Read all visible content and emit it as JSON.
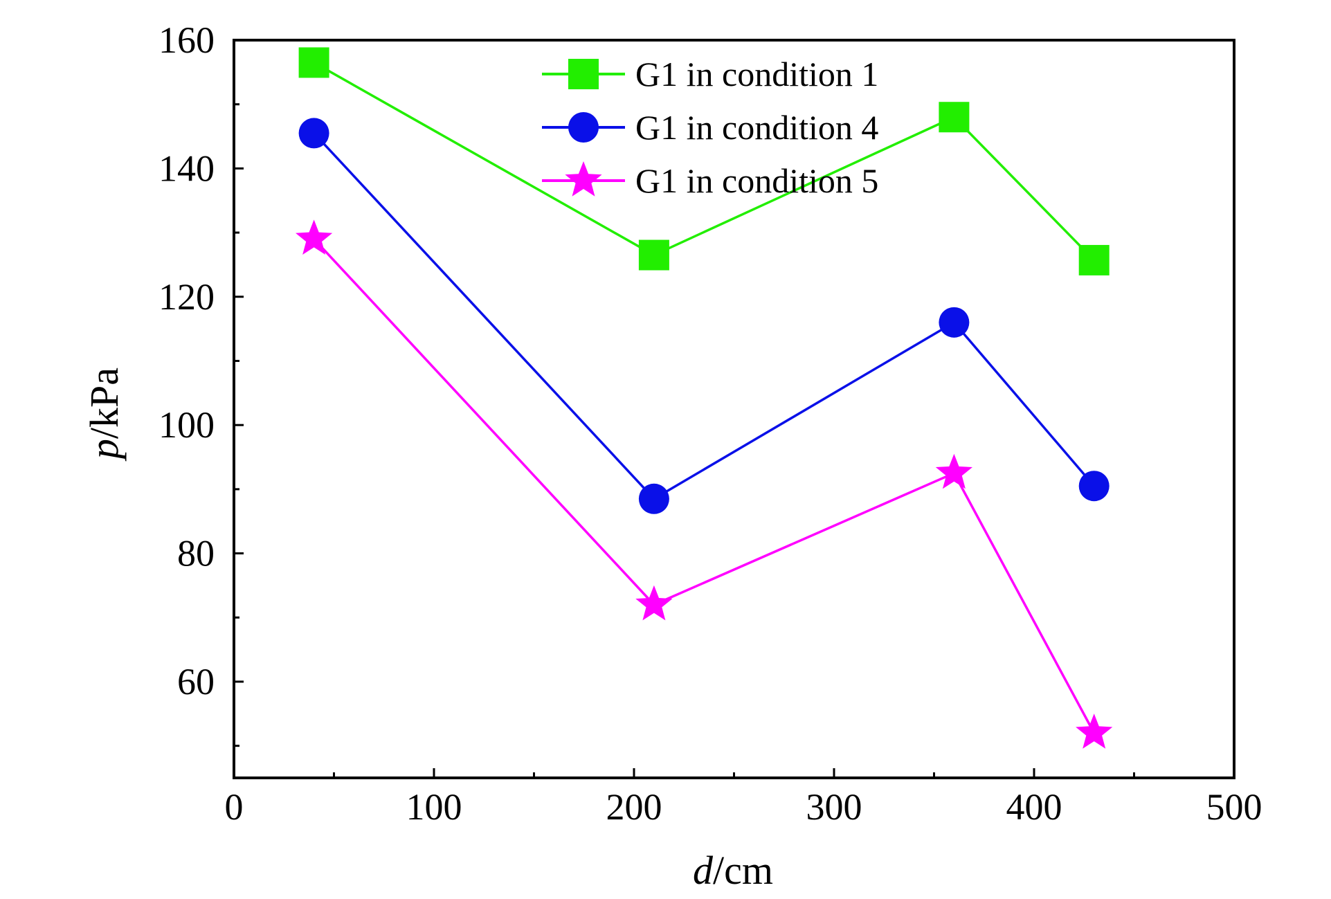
{
  "chart_data": {
    "type": "line",
    "xlabel_var": "d",
    "xlabel_unit": "/cm",
    "ylabel_var": "p",
    "ylabel_unit": "/kPa",
    "xlim": [
      0,
      500
    ],
    "ylim": [
      45,
      160
    ],
    "xticks": [
      0,
      100,
      200,
      300,
      400,
      500
    ],
    "yticks": [
      60,
      80,
      100,
      120,
      140,
      160
    ],
    "grid": false,
    "legend_position": "top-center",
    "x": [
      40,
      210,
      360,
      430
    ],
    "series": [
      {
        "name": "G1 in condition 1",
        "values": [
          156.5,
          126.5,
          148,
          125.7
        ],
        "color": "#22ee00",
        "marker": "square"
      },
      {
        "name": "G1 in condition 4",
        "values": [
          145.5,
          88.5,
          116,
          90.5
        ],
        "color": "#0a10e8",
        "marker": "circle"
      },
      {
        "name": "G1 in condition 5",
        "values": [
          129,
          72,
          92.5,
          52
        ],
        "color": "#ff00ff",
        "marker": "star"
      }
    ]
  }
}
